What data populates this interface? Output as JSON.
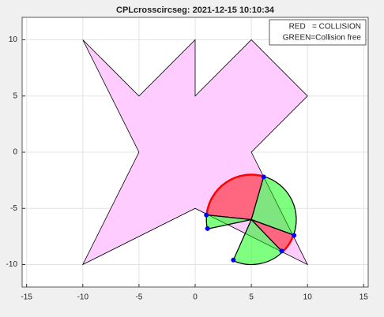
{
  "chart_data": {
    "type": "geometry",
    "title": "CPLcrosscircseg: 2021-12-15 10:10:34",
    "legend_lines": [
      "RED   = COLLISION",
      "GREEN=Collision free"
    ],
    "legend_position": "upper right",
    "xlim": [
      -15.4,
      15.4
    ],
    "ylim": [
      -12,
      12
    ],
    "xticks": [
      -15,
      -10,
      -5,
      0,
      5,
      10,
      15
    ],
    "yticks": [
      -10,
      -5,
      0,
      5,
      10
    ],
    "grid": true,
    "polygon": {
      "color": "#ffccff",
      "x": [
        -10,
        -5,
        0,
        0,
        5,
        10,
        5,
        10,
        0,
        -10,
        -5
      ],
      "y": [
        10,
        5,
        10,
        5,
        10,
        5,
        0,
        -10,
        -5,
        -10,
        0
      ]
    },
    "circle": {
      "center": [
        5,
        -6
      ],
      "radius": 4
    },
    "sectors": [
      {
        "start": 74,
        "end": 174,
        "color": "#ff0000"
      },
      {
        "start": 174,
        "end": 192,
        "color": "#00ff00"
      },
      {
        "start": -114,
        "end": -46,
        "color": "#00ff00"
      },
      {
        "start": -46,
        "end": -20,
        "color": "#ff0000"
      },
      {
        "start": -20,
        "end": 74,
        "color": "#00ff00"
      }
    ],
    "points": {
      "color": "#0000ff",
      "x": [
        1,
        1.1,
        6.1,
        8.8,
        7.7,
        3.4
      ],
      "y": [
        -5.6,
        -6.8,
        -2.2,
        -7.4,
        -8.8,
        -9.6
      ]
    }
  }
}
